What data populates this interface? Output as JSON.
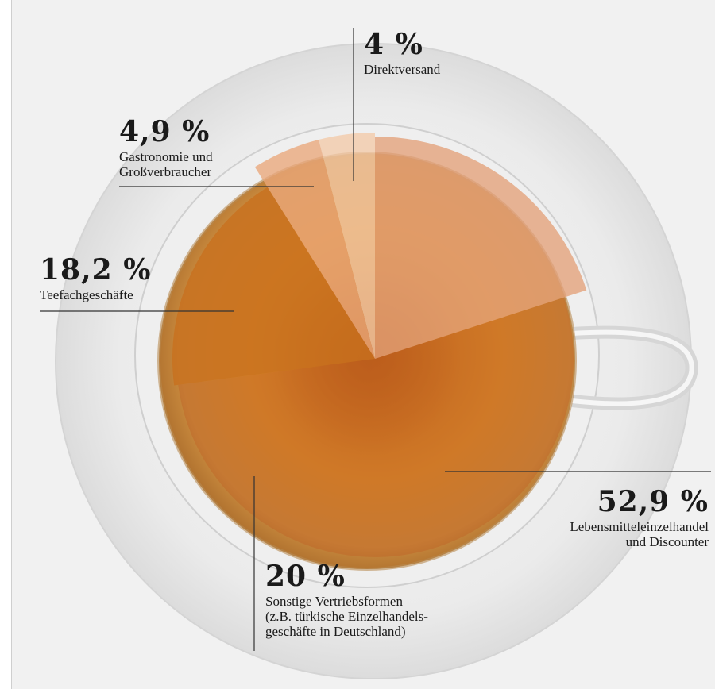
{
  "chart_data": {
    "type": "pie",
    "slices": [
      {
        "label": "Direktversand",
        "value": 4,
        "value_text": "4 %",
        "color": "#f2c9a8"
      },
      {
        "label": "Gastronomie und Großverbraucher",
        "label_lines": [
          "Gastronomie und",
          "Großverbraucher"
        ],
        "value": 4.9,
        "value_text": "4,9 %",
        "color": "#e9a77a"
      },
      {
        "label": "Teefachgeschäfte",
        "value": 18.2,
        "value_text": "18,2 %",
        "color": "#c8701e"
      },
      {
        "label": "Lebensmitteleinzelhandel und Discounter",
        "label_lines": [
          "Lebensmitteleinzelhandel",
          "und Discounter"
        ],
        "value": 52.9,
        "value_text": "52,9 %",
        "color": "#c05a1f"
      },
      {
        "label": "Sonstige Vertriebsformen (z.B. türkische Einzelhandelsgeschäfte in Deutschland)",
        "label_lines": [
          "Sonstige Vertriebsformen",
          "(z.B. türkische Einzelhandels-",
          "geschäfte in Deutschland)"
        ],
        "value": 20,
        "value_text": "20 %",
        "color": "#e3a079"
      }
    ]
  }
}
